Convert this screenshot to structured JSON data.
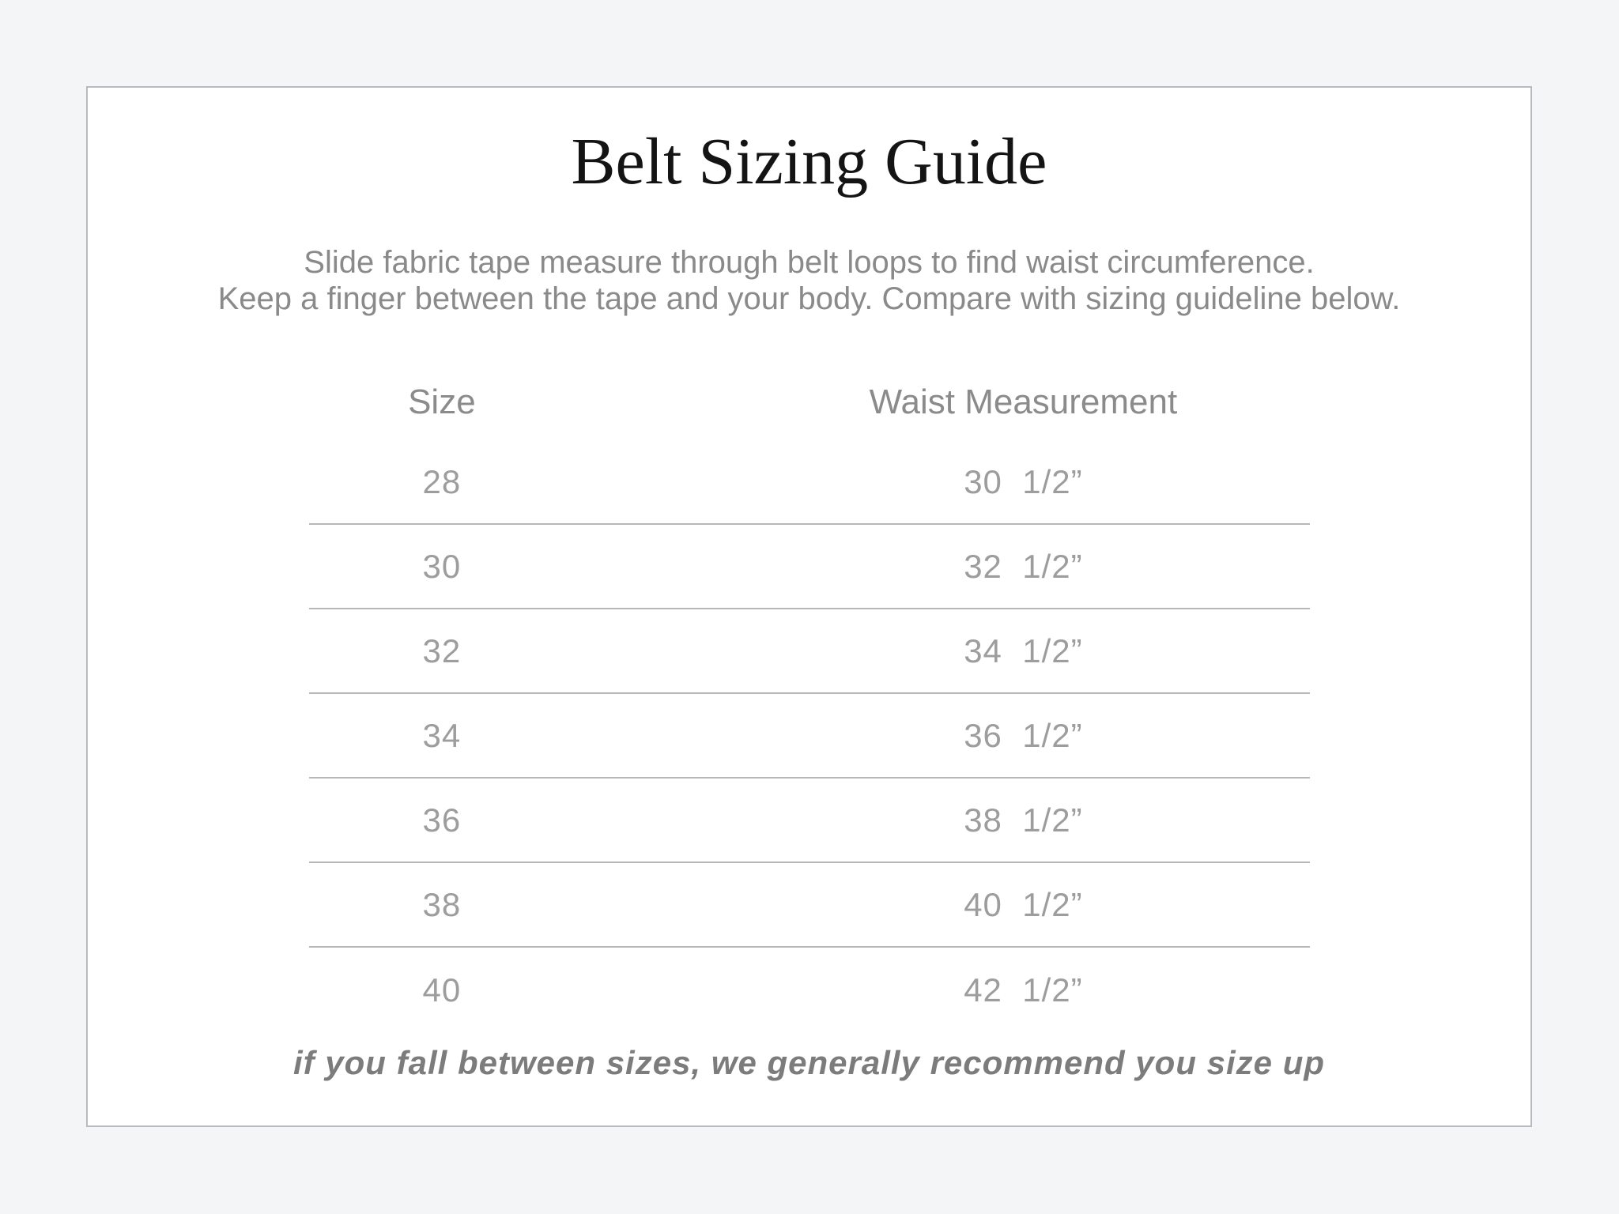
{
  "title": "Belt Sizing Guide",
  "instructions": {
    "line1": "Slide fabric tape measure through belt loops to find waist circumference.",
    "line2": "Keep a finger between the tape and your body. Compare with sizing guideline below."
  },
  "table": {
    "headers": {
      "size": "Size",
      "waist": "Waist Measurement"
    },
    "rows": [
      {
        "size": "28",
        "waist": "30  1/2”"
      },
      {
        "size": "30",
        "waist": "32  1/2”"
      },
      {
        "size": "32",
        "waist": "34  1/2”"
      },
      {
        "size": "34",
        "waist": "36  1/2”"
      },
      {
        "size": "36",
        "waist": "38  1/2”"
      },
      {
        "size": "38",
        "waist": "40  1/2”"
      },
      {
        "size": "40",
        "waist": "42  1/2”"
      }
    ]
  },
  "note": "if you fall between sizes, we generally recommend you size up",
  "colors": {
    "page_background": "#f4f5f7",
    "card_background": "#ffffff",
    "card_border": "#b9babd",
    "title_text": "#141414",
    "instructions_text": "#8a8a8a",
    "header_text": "#8b8b8b",
    "value_text": "#9d9d9d",
    "divider": "#b7b7b7",
    "note_text": "#7c7c7c"
  }
}
